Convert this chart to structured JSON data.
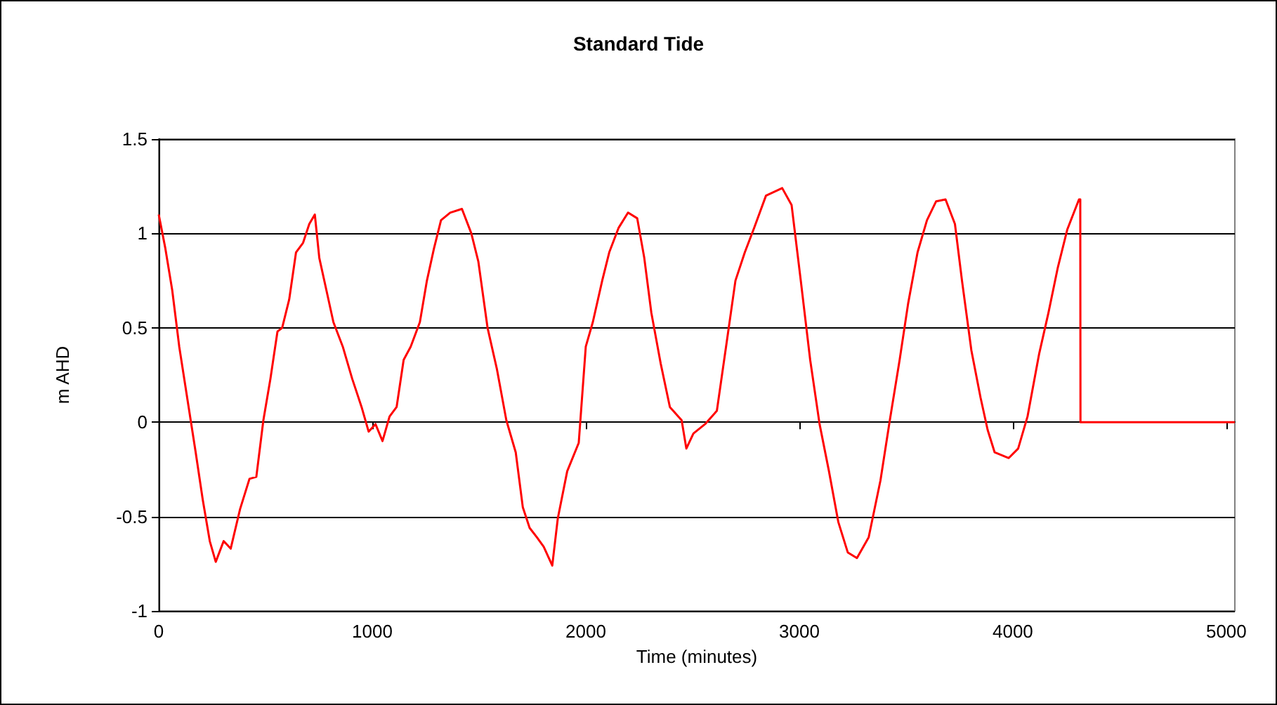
{
  "chart_data": {
    "type": "line",
    "title": "Standard Tide",
    "xlabel": "Time (minutes)",
    "ylabel": "m AHD",
    "xlim": [
      0,
      5040
    ],
    "xticks": [
      0,
      1000,
      2000,
      3000,
      4000,
      5000
    ],
    "ylim": [
      -1,
      1.5
    ],
    "yticks": [
      -1,
      -0.5,
      0,
      0.5,
      1,
      1.5
    ],
    "grid": "y",
    "marker": "none",
    "line_style": "solid",
    "series": [
      {
        "color": "#ff0000",
        "x": [
          0,
          31,
          63,
          96,
          140,
          173,
          206,
          239,
          267,
          304,
          337,
          381,
          425,
          457,
          490,
          523,
          556,
          578,
          611,
          643,
          676,
          705,
          731,
          752,
          785,
          818,
          862,
          906,
          950,
          983,
          1015,
          1048,
          1081,
          1114,
          1147,
          1180,
          1223,
          1256,
          1289,
          1322,
          1365,
          1420,
          1464,
          1497,
          1540,
          1584,
          1628,
          1672,
          1705,
          1737,
          1771,
          1803,
          1843,
          1869,
          1913,
          1967,
          2000,
          2033,
          2077,
          2110,
          2154,
          2198,
          2241,
          2274,
          2307,
          2351,
          2394,
          2449,
          2471,
          2504,
          2559,
          2614,
          2657,
          2701,
          2745,
          2789,
          2844,
          2920,
          2964,
          3007,
          3051,
          3095,
          3139,
          3183,
          3227,
          3270,
          3325,
          3380,
          3424,
          3470,
          3510,
          3554,
          3598,
          3641,
          3685,
          3729,
          3762,
          3806,
          3849,
          3882,
          3915,
          3981,
          4025,
          4069,
          4123,
          4167,
          4211,
          4255,
          4310,
          4316,
          4317,
          5040
        ],
        "values": [
          1.1,
          0.92,
          0.7,
          0.4,
          0.08,
          -0.16,
          -0.41,
          -0.63,
          -0.74,
          -0.63,
          -0.67,
          -0.46,
          -0.3,
          -0.29,
          0.01,
          0.23,
          0.48,
          0.5,
          0.65,
          0.9,
          0.95,
          1.05,
          1.1,
          0.87,
          0.7,
          0.53,
          0.4,
          0.23,
          0.08,
          -0.05,
          -0.01,
          -0.1,
          0.03,
          0.08,
          0.33,
          0.4,
          0.53,
          0.75,
          0.92,
          1.07,
          1.11,
          1.13,
          1.0,
          0.85,
          0.5,
          0.28,
          0.01,
          -0.16,
          -0.45,
          -0.56,
          -0.61,
          -0.66,
          -0.76,
          -0.51,
          -0.26,
          -0.11,
          0.4,
          0.53,
          0.75,
          0.9,
          1.03,
          1.11,
          1.08,
          0.87,
          0.58,
          0.31,
          0.08,
          0.01,
          -0.14,
          -0.06,
          -0.01,
          0.06,
          0.4,
          0.75,
          0.9,
          1.03,
          1.2,
          1.24,
          1.15,
          0.75,
          0.33,
          -0.01,
          -0.26,
          -0.53,
          -0.69,
          -0.72,
          -0.61,
          -0.31,
          0.01,
          0.33,
          0.63,
          0.9,
          1.07,
          1.17,
          1.18,
          1.05,
          0.75,
          0.38,
          0.13,
          -0.04,
          -0.16,
          -0.19,
          -0.14,
          0.03,
          0.36,
          0.58,
          0.82,
          1.02,
          1.18,
          1.18,
          0,
          0
        ]
      }
    ]
  }
}
